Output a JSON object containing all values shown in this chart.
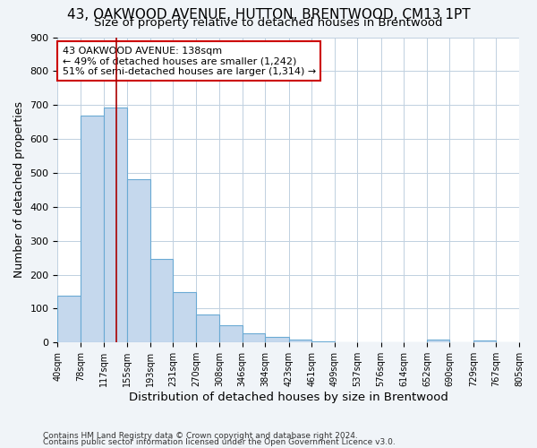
{
  "title": "43, OAKWOOD AVENUE, HUTTON, BRENTWOOD, CM13 1PT",
  "subtitle": "Size of property relative to detached houses in Brentwood",
  "xlabel": "Distribution of detached houses by size in Brentwood",
  "ylabel": "Number of detached properties",
  "footer_line1": "Contains HM Land Registry data © Crown copyright and database right 2024.",
  "footer_line2": "Contains public sector information licensed under the Open Government Licence v3.0.",
  "bin_edges": [
    40,
    78,
    117,
    155,
    193,
    231,
    270,
    308,
    346,
    384,
    423,
    461,
    499,
    537,
    576,
    614,
    652,
    690,
    729,
    767,
    805
  ],
  "bar_heights": [
    137,
    668,
    693,
    482,
    247,
    148,
    83,
    50,
    27,
    18,
    8,
    4,
    1,
    0,
    0,
    0,
    10,
    0,
    7,
    0
  ],
  "bar_color": "#c5d8ed",
  "bar_edge_color": "#6aaad4",
  "tick_labels": [
    "40sqm",
    "78sqm",
    "117sqm",
    "155sqm",
    "193sqm",
    "231sqm",
    "270sqm",
    "308sqm",
    "346sqm",
    "384sqm",
    "423sqm",
    "461sqm",
    "499sqm",
    "537sqm",
    "576sqm",
    "614sqm",
    "652sqm",
    "690sqm",
    "729sqm",
    "767sqm",
    "805sqm"
  ],
  "property_line_x": 138,
  "property_line_color": "#aa0000",
  "annotation_line1": "43 OAKWOOD AVENUE: 138sqm",
  "annotation_line2": "← 49% of detached houses are smaller (1,242)",
  "annotation_line3": "51% of semi-detached houses are larger (1,314) →",
  "annotation_box_color": "#ffffff",
  "annotation_box_edge_color": "#cc0000",
  "ylim": [
    0,
    900
  ],
  "yticks": [
    0,
    100,
    200,
    300,
    400,
    500,
    600,
    700,
    800,
    900
  ],
  "grid_color": "#c0d0e0",
  "plot_bg_color": "#ffffff",
  "fig_bg_color": "#f0f4f8",
  "title_fontsize": 11,
  "subtitle_fontsize": 9.5,
  "axis_label_fontsize": 9,
  "tick_fontsize": 7,
  "annotation_fontsize": 8,
  "footer_fontsize": 6.5
}
